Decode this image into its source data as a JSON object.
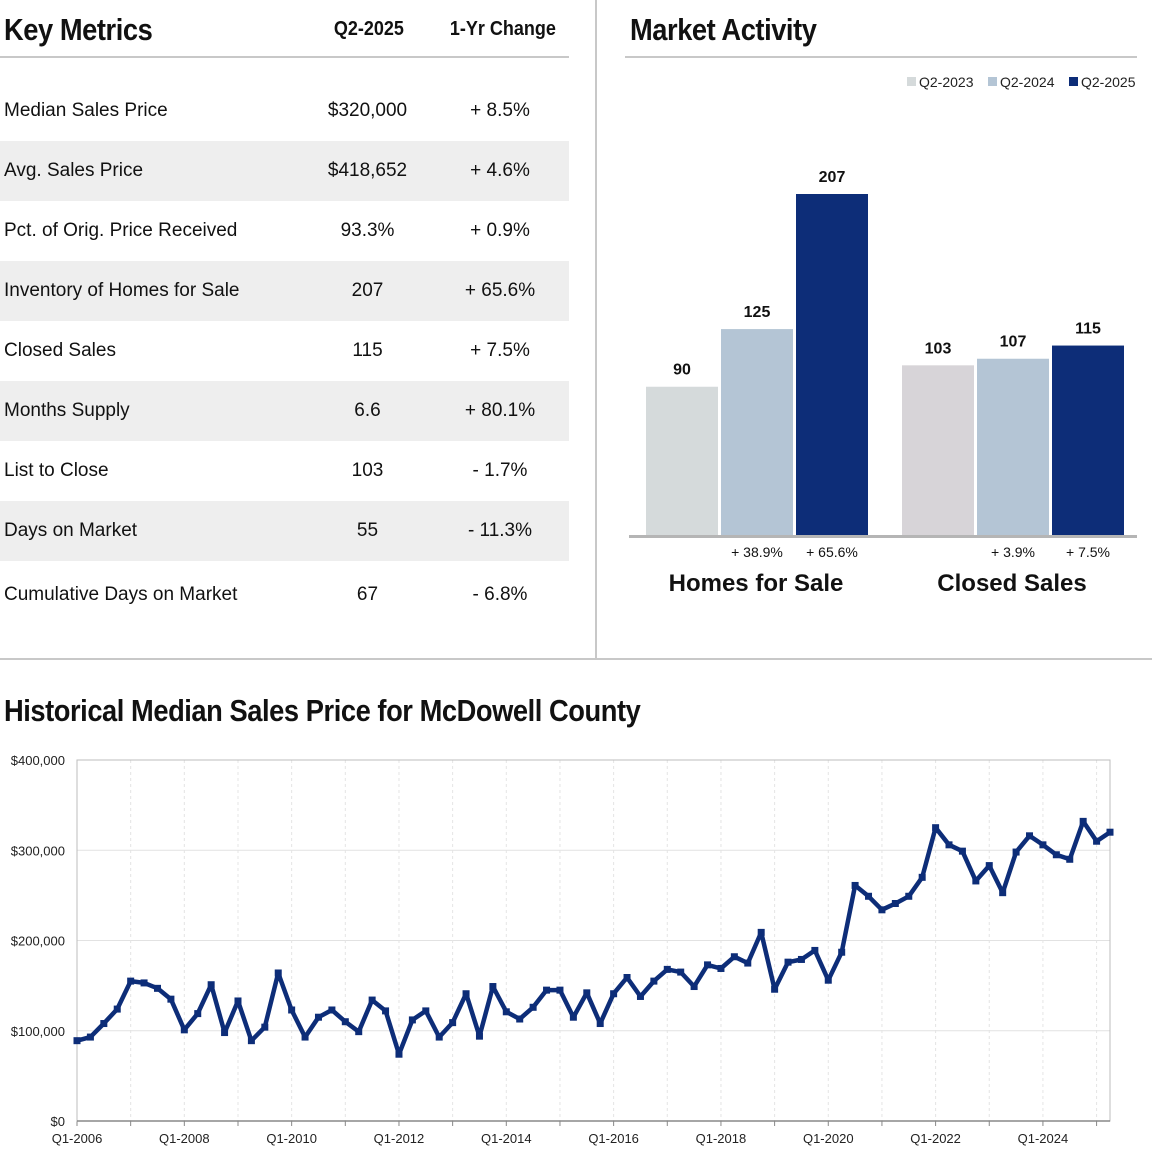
{
  "key_metrics": {
    "title": "Key Metrics",
    "col_period": "Q2-2025",
    "col_change": "1-Yr Change",
    "rows": [
      {
        "label": "Median Sales Price",
        "value": "$320,000",
        "change": "+ 8.5%"
      },
      {
        "label": "Avg. Sales Price",
        "value": "$418,652",
        "change": "+ 4.6%"
      },
      {
        "label": "Pct. of Orig. Price Received",
        "value": "93.3%",
        "change": "+ 0.9%"
      },
      {
        "label": "Inventory of Homes for Sale",
        "value": "207",
        "change": "+ 65.6%"
      },
      {
        "label": "Closed Sales",
        "value": "115",
        "change": "+ 7.5%"
      },
      {
        "label": "Months Supply",
        "value": "6.6",
        "change": "+ 80.1%"
      },
      {
        "label": "List to Close",
        "value": "103",
        "change": "- 1.7%"
      },
      {
        "label": "Days on Market",
        "value": "55",
        "change": "- 11.3%"
      },
      {
        "label": "Cumulative Days on Market",
        "value": "67",
        "change": "- 6.8%"
      }
    ]
  },
  "market_activity": {
    "title": "Market Activity"
  },
  "historical": {
    "title": "Historical Median Sales Price for McDowell County"
  },
  "chart_data": [
    {
      "type": "bar",
      "legend_position": "top-right",
      "series": [
        {
          "name": "Q2-2023",
          "color": "#d5dadb",
          "values": [
            90,
            103
          ]
        },
        {
          "name": "Q2-2024",
          "color": "#b4c5d5",
          "values": [
            125,
            107
          ]
        },
        {
          "name": "Q2-2025",
          "color": "#0d2d78",
          "values": [
            207,
            115
          ]
        }
      ],
      "categories": [
        "Homes for Sale",
        "Closed Sales"
      ],
      "group_first_color_override": [
        "#d5dadb",
        "#d7d4d8"
      ],
      "change_labels": [
        [
          "",
          "+ 38.9%",
          "+ 65.6%"
        ],
        [
          "",
          "+ 3.9%",
          "+ 7.5%"
        ]
      ],
      "ylim": [
        0,
        220
      ],
      "grid": false
    },
    {
      "type": "line",
      "color": "#0d2d78",
      "x_start": "Q1-2006",
      "x_tick_labels": [
        "Q1-2006",
        "Q1-2008",
        "Q1-2010",
        "Q1-2012",
        "Q1-2014",
        "Q1-2016",
        "Q1-2018",
        "Q1-2020",
        "Q1-2022",
        "Q1-2024"
      ],
      "y_tick_labels": [
        "$0",
        "$100,000",
        "$200,000",
        "$300,000",
        "$400,000"
      ],
      "ylim": [
        0,
        400000
      ],
      "grid": true,
      "values": [
        89000,
        93000,
        108000,
        124000,
        155000,
        153000,
        147000,
        135000,
        101000,
        119000,
        151000,
        98000,
        133000,
        89000,
        104000,
        164000,
        123000,
        93000,
        115000,
        123000,
        110000,
        99000,
        134000,
        122000,
        74000,
        112000,
        122000,
        93000,
        109000,
        141000,
        94000,
        149000,
        121000,
        113000,
        126000,
        145000,
        145000,
        115000,
        142000,
        108000,
        141000,
        159000,
        138000,
        155000,
        168000,
        165000,
        149000,
        173000,
        169000,
        182000,
        175000,
        209000,
        146000,
        176000,
        179000,
        189000,
        156000,
        187000,
        261000,
        249000,
        234000,
        241000,
        249000,
        270000,
        325000,
        306000,
        299000,
        266000,
        283000,
        253000,
        298000,
        316000,
        306000,
        295000,
        290000,
        332000,
        310000,
        320000
      ]
    }
  ]
}
